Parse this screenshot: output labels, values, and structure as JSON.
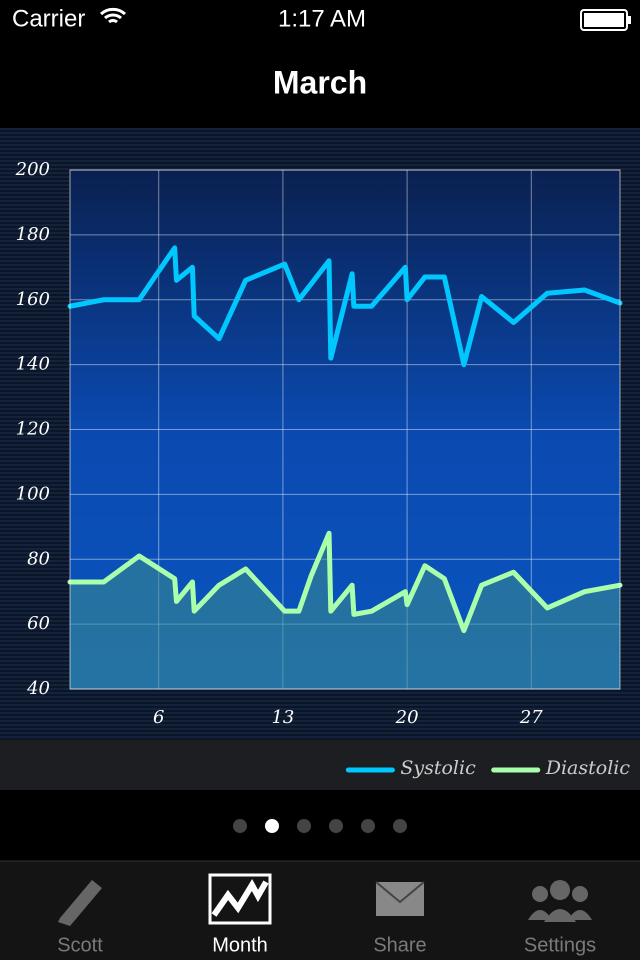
{
  "status_bar": {
    "carrier": "Carrier",
    "time": "1:17 AM"
  },
  "title": "March",
  "chart_data": {
    "type": "line",
    "xlim": [
      1,
      32
    ],
    "xticks": [
      6,
      13,
      20,
      27
    ],
    "ylim": [
      40,
      200
    ],
    "yticks": [
      40,
      60,
      80,
      100,
      120,
      140,
      160,
      180,
      200
    ],
    "grid": true,
    "legend": "bottom-right",
    "series": [
      {
        "name": "Systolic",
        "color": "#00c8ff",
        "x": [
          1,
          2.9,
          4.9,
          6.9,
          7.0,
          7.9,
          8.0,
          9.4,
          10.9,
          13.1,
          13.9,
          15.6,
          15.7,
          16.9,
          17.0,
          18.0,
          19.9,
          20.0,
          21.0,
          22.1,
          23.2,
          24.2,
          26.0,
          27.9,
          30.0,
          32
        ],
        "values": [
          158,
          160,
          160,
          176,
          166,
          170,
          155,
          148,
          166,
          171,
          160,
          172,
          142,
          168,
          158,
          158,
          170,
          160,
          167,
          167,
          140,
          161,
          153,
          162,
          163,
          159
        ]
      },
      {
        "name": "Diastolic",
        "color": "#aaffaa",
        "x": [
          1,
          2.9,
          4.9,
          6.9,
          7.0,
          7.9,
          8.0,
          9.4,
          10.9,
          13.1,
          13.9,
          14.6,
          15.6,
          15.7,
          16.9,
          17.0,
          18.0,
          19.9,
          20.0,
          21.0,
          22.1,
          23.2,
          24.2,
          26.0,
          27.9,
          30.0,
          32
        ],
        "values": [
          73,
          73,
          81,
          74,
          67,
          73,
          64,
          72,
          77,
          64,
          64,
          75,
          88,
          64,
          72,
          63,
          64,
          70,
          66,
          78,
          74,
          58,
          72,
          76,
          65,
          70,
          72
        ]
      }
    ]
  },
  "tab_bar": {
    "items": [
      "Scott",
      "Month",
      "Share",
      "Settings"
    ],
    "selected": 1
  }
}
